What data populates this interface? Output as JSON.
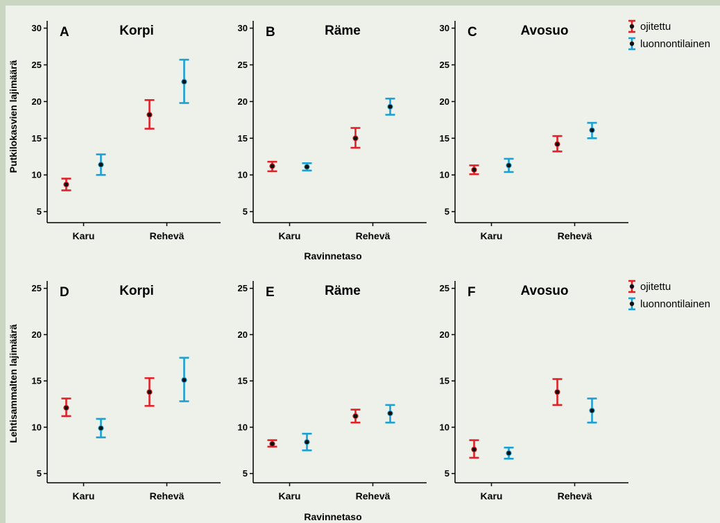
{
  "colors": {
    "ojitettu": "#e02228",
    "luonnontilainen": "#1aa0d2",
    "point": "#111111"
  },
  "labels": {
    "ylabel_top": "Putkilokasvien lajimäärä",
    "ylabel_bottom": "Lehtisammalten lajimäärä",
    "xlabel_top": "Ravinnetaso",
    "xlabel_bottom": "Ravinnetaso"
  },
  "legend": {
    "items": [
      "ojitettu",
      "luonnontilainen"
    ]
  },
  "chart_data": [
    {
      "type": "errorbar",
      "panel": "A",
      "title": "Korpi",
      "categories": [
        "Karu",
        "Rehevä"
      ],
      "ylim": [
        3.5,
        31
      ],
      "yticks": [
        5,
        10,
        15,
        20,
        25,
        30
      ],
      "series": [
        {
          "name": "ojitettu",
          "values": [
            8.7,
            18.2
          ],
          "lower": [
            7.9,
            16.3
          ],
          "upper": [
            9.5,
            20.2
          ]
        },
        {
          "name": "luonnontilainen",
          "values": [
            11.4,
            22.7
          ],
          "lower": [
            10.0,
            19.8
          ],
          "upper": [
            12.8,
            25.7
          ]
        }
      ]
    },
    {
      "type": "errorbar",
      "panel": "B",
      "title": "Räme",
      "categories": [
        "Karu",
        "Rehevä"
      ],
      "ylim": [
        3.5,
        31
      ],
      "yticks": [
        5,
        10,
        15,
        20,
        25,
        30
      ],
      "series": [
        {
          "name": "ojitettu",
          "values": [
            11.2,
            15.0
          ],
          "lower": [
            10.5,
            13.7
          ],
          "upper": [
            11.8,
            16.4
          ]
        },
        {
          "name": "luonnontilainen",
          "values": [
            11.1,
            19.3
          ],
          "lower": [
            10.6,
            18.2
          ],
          "upper": [
            11.6,
            20.4
          ]
        }
      ]
    },
    {
      "type": "errorbar",
      "panel": "C",
      "title": "Avosuo",
      "categories": [
        "Karu",
        "Rehevä"
      ],
      "ylim": [
        3.5,
        31
      ],
      "yticks": [
        5,
        10,
        15,
        20,
        25,
        30
      ],
      "series": [
        {
          "name": "ojitettu",
          "values": [
            10.7,
            14.2
          ],
          "lower": [
            10.1,
            13.2
          ],
          "upper": [
            11.3,
            15.3
          ]
        },
        {
          "name": "luonnontilainen",
          "values": [
            11.3,
            16.1
          ],
          "lower": [
            10.4,
            15.0
          ],
          "upper": [
            12.2,
            17.1
          ]
        }
      ]
    },
    {
      "type": "errorbar",
      "panel": "D",
      "title": "Korpi",
      "categories": [
        "Karu",
        "Rehevä"
      ],
      "ylim": [
        4,
        25.8
      ],
      "yticks": [
        5,
        10,
        15,
        20,
        25
      ],
      "series": [
        {
          "name": "ojitettu",
          "values": [
            12.1,
            13.8
          ],
          "lower": [
            11.2,
            12.3
          ],
          "upper": [
            13.1,
            15.3
          ]
        },
        {
          "name": "luonnontilainen",
          "values": [
            9.9,
            15.1
          ],
          "lower": [
            8.9,
            12.8
          ],
          "upper": [
            10.9,
            17.5
          ]
        }
      ]
    },
    {
      "type": "errorbar",
      "panel": "E",
      "title": "Räme",
      "categories": [
        "Karu",
        "Rehevä"
      ],
      "ylim": [
        4,
        25.8
      ],
      "yticks": [
        5,
        10,
        15,
        20,
        25
      ],
      "series": [
        {
          "name": "ojitettu",
          "values": [
            8.2,
            11.2
          ],
          "lower": [
            7.9,
            10.5
          ],
          "upper": [
            8.6,
            11.9
          ]
        },
        {
          "name": "luonnontilainen",
          "values": [
            8.4,
            11.5
          ],
          "lower": [
            7.5,
            10.5
          ],
          "upper": [
            9.3,
            12.4
          ]
        }
      ]
    },
    {
      "type": "errorbar",
      "panel": "F",
      "title": "Avosuo",
      "categories": [
        "Karu",
        "Rehevä"
      ],
      "ylim": [
        4,
        25.8
      ],
      "yticks": [
        5,
        10,
        15,
        20,
        25
      ],
      "series": [
        {
          "name": "ojitettu",
          "values": [
            7.6,
            13.8
          ],
          "lower": [
            6.7,
            12.4
          ],
          "upper": [
            8.6,
            15.2
          ]
        },
        {
          "name": "luonnontilainen",
          "values": [
            7.2,
            11.8
          ],
          "lower": [
            6.6,
            10.5
          ],
          "upper": [
            7.8,
            13.1
          ]
        }
      ]
    }
  ]
}
